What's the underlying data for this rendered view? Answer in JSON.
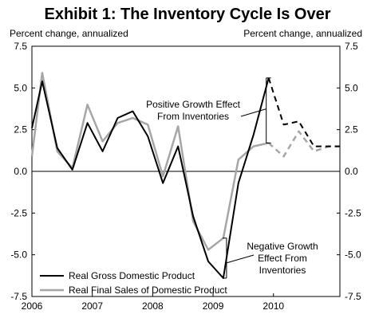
{
  "chart_data": {
    "type": "line",
    "title": "Exhibit 1: The Inventory Cycle Is Over",
    "left_axis_label": "Percent change, annualized",
    "right_axis_label": "Percent change, annualized",
    "ylim": [
      -7.5,
      7.5
    ],
    "y_ticks": [
      "7.5",
      "5.0",
      "2.5",
      "0.0",
      "-2.5",
      "-5.0",
      "-7.5"
    ],
    "y_tick_values": [
      7.5,
      5.0,
      2.5,
      0.0,
      -2.5,
      -5.0,
      -7.5
    ],
    "xlim": [
      2006,
      2011.1
    ],
    "x_ticks": [
      "2006",
      "2007",
      "2008",
      "2009",
      "2010"
    ],
    "x_tick_values": [
      2006,
      2007,
      2008,
      2009,
      2010
    ],
    "grid": false,
    "legend_position": "bottom-left",
    "series": [
      {
        "name": "Real Gross Domestic Product",
        "color": "#000000",
        "actual": {
          "x": [
            2006.0,
            2006.17,
            2006.42,
            2006.67,
            2006.92,
            2007.17,
            2007.42,
            2007.67,
            2007.92,
            2008.17,
            2008.42,
            2008.67,
            2008.92,
            2009.17,
            2009.42,
            2009.67,
            2009.92
          ],
          "y": [
            2.6,
            5.4,
            1.4,
            0.1,
            2.9,
            1.2,
            3.2,
            3.6,
            2.1,
            -0.7,
            1.5,
            -2.7,
            -5.4,
            -6.4,
            -0.7,
            2.2,
            5.6
          ]
        },
        "forecast": {
          "x": [
            2009.92,
            2010.17,
            2010.42,
            2010.67,
            2010.92,
            2011.1
          ],
          "y": [
            5.6,
            2.8,
            3.0,
            1.5,
            1.5,
            1.5
          ]
        }
      },
      {
        "name": "Real Final Sales of Domestic Product",
        "color": "#a6a6a6",
        "actual": {
          "x": [
            2006.0,
            2006.17,
            2006.42,
            2006.67,
            2006.92,
            2007.17,
            2007.42,
            2007.67,
            2007.92,
            2008.17,
            2008.42,
            2008.67,
            2008.92,
            2009.17,
            2009.42,
            2009.67,
            2009.92
          ],
          "y": [
            0.9,
            5.9,
            1.2,
            0.2,
            4.0,
            1.8,
            2.9,
            3.2,
            2.8,
            -0.3,
            2.7,
            -3.0,
            -4.7,
            -4.0,
            0.7,
            1.5,
            1.7
          ]
        },
        "forecast": {
          "x": [
            2009.92,
            2010.17,
            2010.42,
            2010.67,
            2010.92,
            2011.1
          ],
          "y": [
            1.7,
            0.9,
            2.4,
            1.2,
            1.5,
            1.5
          ]
        }
      }
    ],
    "annotations": [
      {
        "lines": [
          "Positive Growth Effect",
          "From Inventories"
        ],
        "bracket_x": 2009.92,
        "y_top": 5.6,
        "y_bottom": 1.7
      },
      {
        "lines": [
          "Negative Growth",
          "Effect From",
          "Inventories"
        ],
        "bracket_x": 2009.17,
        "y_top": -4.0,
        "y_bottom": -6.4
      }
    ]
  }
}
